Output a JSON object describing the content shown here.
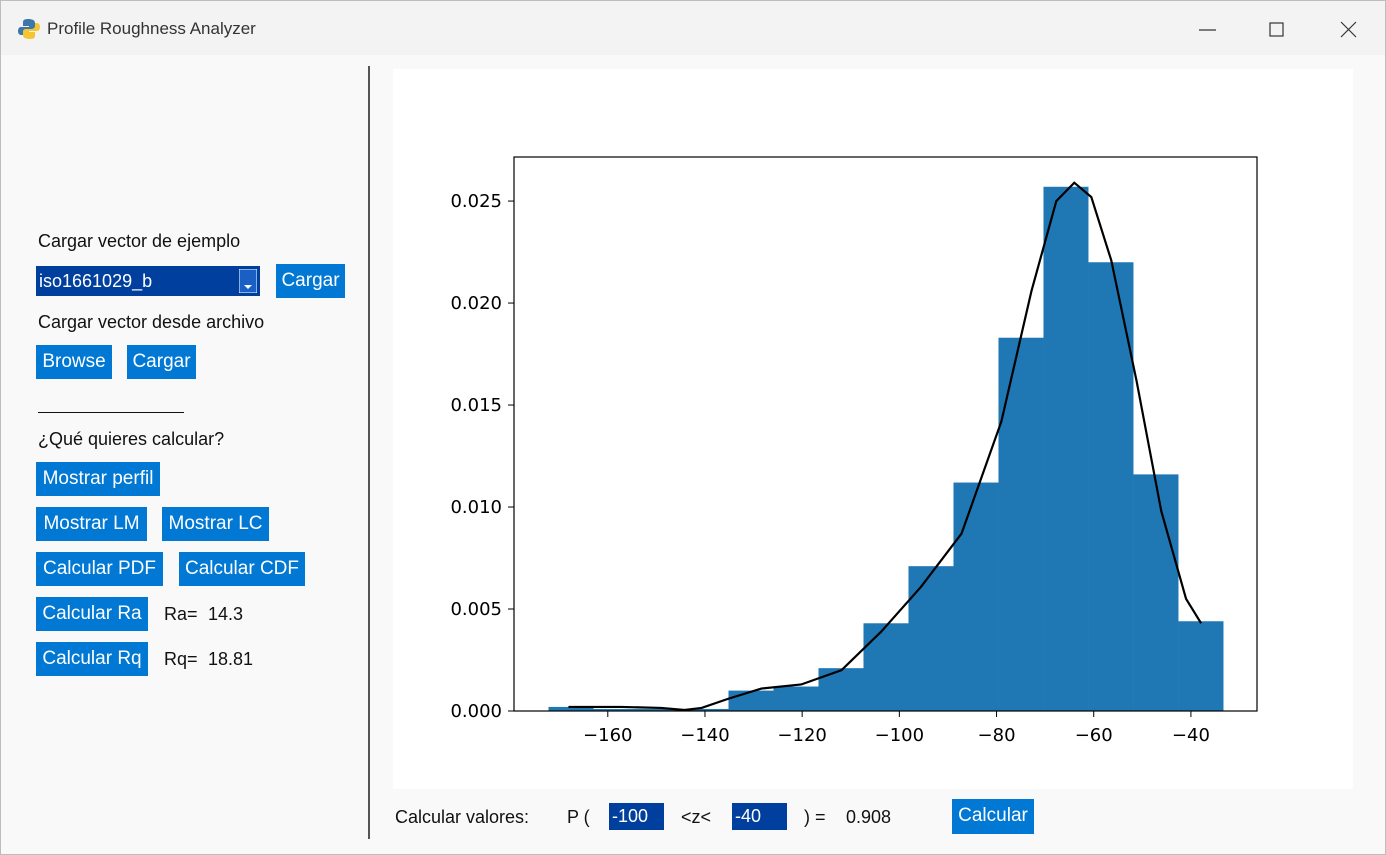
{
  "window": {
    "title": "Profile Roughness Analyzer"
  },
  "sidebar": {
    "example_label": "Cargar vector de ejemplo",
    "example_select": "iso1661029_b",
    "example_load": "Cargar",
    "file_label": "Cargar vector desde archivo",
    "browse": "Browse",
    "file_load": "Cargar",
    "question": "¿Qué quieres calcular?",
    "show_profile": "Mostrar perfil",
    "show_lm": "Mostrar LM",
    "show_lc": "Mostrar LC",
    "calc_pdf": "Calcular PDF",
    "calc_cdf": "Calcular CDF",
    "calc_ra": "Calcular Ra",
    "ra_label": "Ra=",
    "ra_value": 14.3,
    "calc_rq": "Calcular Rq",
    "rq_label": "Rq=",
    "rq_value": 18.81
  },
  "chart_data": {
    "type": "histogram",
    "bins": [
      -172.2,
      -162.94,
      -153.68,
      -144.42,
      -135.16,
      -125.9,
      -116.64,
      -107.38,
      -98.12,
      -88.86,
      -79.6,
      -70.34,
      -61.08,
      -51.82,
      -42.56,
      -33.3
    ],
    "values": [
      0.0002,
      0.0001,
      0.0001,
      0.0001,
      0.001,
      0.0012,
      0.0021,
      0.0043,
      0.0071,
      0.0112,
      0.0183,
      0.0257,
      0.022,
      0.0116,
      0.0044
    ],
    "color": "#1f77b4",
    "line": {
      "x": [
        -168.1,
        -157.2,
        -149,
        -144.2,
        -140.7,
        -135.2,
        -128.4,
        -120.2,
        -111.9,
        -103.7,
        -95.5,
        -87.2,
        -79,
        -72.8,
        -67.7,
        -64,
        -60.5,
        -56.4,
        -51.2,
        -46.1,
        -41,
        -37.9
      ],
      "values": [
        0.0002,
        0.0002,
        0.00015,
        5e-05,
        0.00015,
        0.0006,
        0.0011,
        0.0013,
        0.002,
        0.0039,
        0.0061,
        0.0087,
        0.0142,
        0.0206,
        0.025,
        0.0259,
        0.0252,
        0.0221,
        0.0162,
        0.0098,
        0.0055,
        0.0043
      ],
      "color": "#000000"
    },
    "xlim": [
      -179.3,
      -26.4
    ],
    "ylim": [
      0,
      0.02716
    ],
    "xticks": [
      {
        "value": -160,
        "label": "−160"
      },
      {
        "value": -140,
        "label": "−140"
      },
      {
        "value": -120,
        "label": "−120"
      },
      {
        "value": -100,
        "label": "−100"
      },
      {
        "value": -80,
        "label": "−80"
      },
      {
        "value": -60,
        "label": "−60"
      },
      {
        "value": -40,
        "label": "−40"
      }
    ],
    "yticks": [
      {
        "value": 0,
        "label": "0.000"
      },
      0.005,
      {
        "value": 0.01,
        "label": "0.010"
      },
      0.015,
      {
        "value": 0.02,
        "label": "0.020"
      },
      0.025
    ]
  },
  "probability": {
    "label": "Calcular valores:",
    "p_open": "P (",
    "lower": -100,
    "between": "<z<",
    "upper": -40,
    "close": ") =",
    "result": 0.908,
    "button": "Calcular"
  }
}
